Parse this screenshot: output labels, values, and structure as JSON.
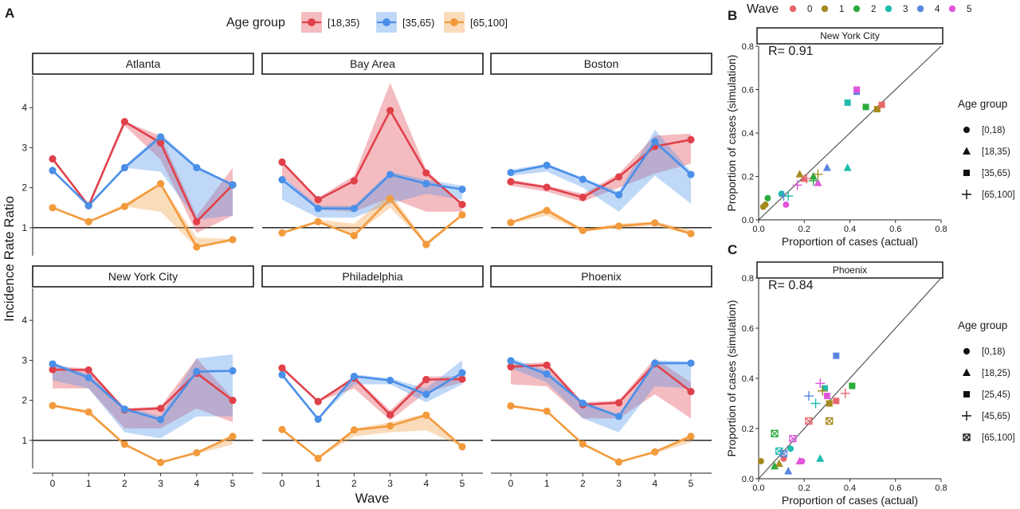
{
  "chart_data": [
    {
      "panel": "A",
      "type": "line",
      "ylabel": "Incidence Rate Ratio",
      "xlabel": "Wave",
      "x": [
        0,
        1,
        2,
        3,
        4,
        5
      ],
      "xticks": [
        "0",
        "1",
        "2",
        "3",
        "4",
        "5"
      ],
      "yticks": [
        "1",
        "2",
        "3",
        "4"
      ],
      "ylim": [
        0.3,
        4.8
      ],
      "hline": 1,
      "legend": {
        "title": "Age group",
        "position": "top",
        "entries": [
          {
            "label": "[18,35)",
            "color": "#e0404a"
          },
          {
            "label": "[35,65)",
            "color": "#4a8fe8"
          },
          {
            "label": "[65,100]",
            "color": "#f29a3c"
          }
        ]
      },
      "facets": [
        {
          "title": "Atlanta",
          "series": [
            {
              "name": "[18,35)",
              "values": [
                2.72,
                1.55,
                3.65,
                3.12,
                1.15,
                2.07
              ],
              "lower": [
                2.72,
                1.55,
                3.55,
                2.7,
                0.87,
                1.3
              ],
              "upper": [
                2.72,
                1.55,
                3.65,
                3.3,
                1.3,
                2.5
              ]
            },
            {
              "name": "[35,65)",
              "values": [
                2.43,
                1.55,
                2.5,
                3.27,
                2.5,
                2.07
              ],
              "lower": [
                2.43,
                1.55,
                2.5,
                2.4,
                1.2,
                1.3
              ],
              "upper": [
                2.43,
                1.55,
                2.55,
                3.35,
                2.55,
                2.1
              ]
            },
            {
              "name": "[65,100]",
              "values": [
                1.5,
                1.15,
                1.53,
                2.1,
                0.52,
                0.7
              ],
              "lower": [
                1.5,
                1.15,
                1.53,
                1.4,
                0.5,
                0.66
              ],
              "upper": [
                1.5,
                1.15,
                1.6,
                2.12,
                0.75,
                0.72
              ]
            }
          ]
        },
        {
          "title": "Bay Area",
          "series": [
            {
              "name": "[18,35)",
              "values": [
                2.64,
                1.7,
                2.17,
                3.93,
                2.37,
                1.58
              ],
              "lower": [
                2.3,
                1.45,
                1.4,
                1.75,
                1.4,
                1.4
              ],
              "upper": [
                2.64,
                1.75,
                2.3,
                4.62,
                2.45,
                1.6
              ]
            },
            {
              "name": "[35,65)",
              "values": [
                2.2,
                1.48,
                1.48,
                2.33,
                2.1,
                1.96
              ],
              "lower": [
                1.7,
                1.25,
                1.25,
                1.6,
                1.85,
                1.7
              ],
              "upper": [
                2.3,
                1.55,
                1.55,
                2.4,
                2.2,
                2.05
              ]
            },
            {
              "name": "[65,100]",
              "values": [
                0.87,
                1.15,
                0.8,
                1.72,
                0.58,
                1.32
              ],
              "lower": [
                0.87,
                1.15,
                0.8,
                1.5,
                0.58,
                1.3
              ],
              "upper": [
                0.87,
                1.2,
                1.1,
                1.85,
                0.65,
                1.35
              ]
            }
          ]
        },
        {
          "title": "Boston",
          "series": [
            {
              "name": "[18,35)",
              "values": [
                2.15,
                2.01,
                1.76,
                2.27,
                3.03,
                3.2
              ],
              "lower": [
                2.05,
                1.9,
                1.65,
                2.0,
                2.35,
                2.6
              ],
              "upper": [
                2.2,
                2.05,
                1.85,
                2.35,
                3.3,
                3.35
              ]
            },
            {
              "name": "[35,65)",
              "values": [
                2.38,
                2.56,
                2.21,
                1.82,
                3.15,
                2.33
              ],
              "lower": [
                2.3,
                2.4,
                2.0,
                1.4,
                2.3,
                1.6
              ],
              "upper": [
                2.45,
                2.6,
                2.25,
                1.9,
                3.45,
                2.4
              ]
            },
            {
              "name": "[65,100]",
              "values": [
                1.13,
                1.43,
                0.93,
                1.04,
                1.12,
                0.85
              ],
              "lower": [
                1.1,
                1.3,
                0.9,
                1.0,
                1.05,
                0.82
              ],
              "upper": [
                1.15,
                1.5,
                0.97,
                1.1,
                1.15,
                0.95
              ]
            }
          ]
        },
        {
          "title": "New York City",
          "series": [
            {
              "name": "[18,35)",
              "values": [
                2.77,
                2.76,
                1.76,
                1.8,
                2.68,
                2.0
              ],
              "lower": [
                2.3,
                2.3,
                1.3,
                1.3,
                1.8,
                1.45
              ],
              "upper": [
                2.85,
                2.8,
                1.8,
                1.85,
                3.05,
                2.05
              ]
            },
            {
              "name": "[35,65)",
              "values": [
                2.91,
                2.57,
                1.78,
                1.52,
                2.72,
                2.74
              ],
              "lower": [
                2.5,
                2.3,
                1.2,
                1.05,
                1.6,
                1.6
              ],
              "upper": [
                2.95,
                2.65,
                1.85,
                1.6,
                3.05,
                3.15
              ]
            },
            {
              "name": "[65,100]",
              "values": [
                1.87,
                1.71,
                0.9,
                0.45,
                0.69,
                1.1
              ],
              "lower": [
                1.85,
                1.65,
                0.88,
                0.43,
                0.66,
                0.9
              ],
              "upper": [
                1.9,
                1.75,
                0.92,
                0.47,
                0.72,
                1.15
              ]
            }
          ]
        },
        {
          "title": "Philadelphia",
          "series": [
            {
              "name": "[18,35)",
              "values": [
                2.81,
                1.97,
                2.56,
                1.64,
                2.52,
                2.53
              ],
              "lower": [
                2.81,
                1.97,
                2.3,
                1.5,
                2.2,
                2.45
              ],
              "upper": [
                2.81,
                1.97,
                2.6,
                1.75,
                2.6,
                2.6
              ]
            },
            {
              "name": "[35,65)",
              "values": [
                2.64,
                1.53,
                2.6,
                2.5,
                2.15,
                2.69
              ],
              "lower": [
                2.64,
                1.53,
                2.4,
                2.4,
                1.95,
                2.4
              ],
              "upper": [
                2.64,
                1.53,
                2.65,
                2.55,
                2.3,
                3.0
              ]
            },
            {
              "name": "[65,100]",
              "values": [
                1.27,
                0.55,
                1.26,
                1.36,
                1.63,
                0.84
              ],
              "lower": [
                1.27,
                0.55,
                1.1,
                1.2,
                1.25,
                0.84
              ],
              "upper": [
                1.27,
                0.55,
                1.3,
                1.45,
                1.67,
                0.84
              ]
            }
          ]
        },
        {
          "title": "Phoenix",
          "series": [
            {
              "name": "[18,35)",
              "values": [
                2.84,
                2.88,
                1.89,
                1.94,
                2.91,
                2.22
              ],
              "lower": [
                2.4,
                2.35,
                1.55,
                1.55,
                2.15,
                1.55
              ],
              "upper": [
                2.9,
                2.95,
                1.95,
                2.0,
                3.05,
                2.45
              ]
            },
            {
              "name": "[35,65)",
              "values": [
                2.99,
                2.66,
                1.93,
                1.6,
                2.93,
                2.93
              ],
              "lower": [
                2.8,
                2.45,
                1.55,
                1.2,
                2.35,
                2.3
              ],
              "upper": [
                3.05,
                2.75,
                1.98,
                1.65,
                3.0,
                2.97
              ]
            },
            {
              "name": "[65,100]",
              "values": [
                1.86,
                1.73,
                0.91,
                0.46,
                0.71,
                1.1
              ],
              "lower": [
                1.83,
                1.7,
                0.88,
                0.44,
                0.68,
                0.95
              ],
              "upper": [
                1.89,
                1.76,
                0.94,
                0.48,
                0.74,
                1.15
              ]
            }
          ]
        }
      ]
    },
    {
      "panel": "B",
      "type": "scatter",
      "strip": "New York City",
      "annotation": "R= 0.91",
      "xlabel": "Proportion of cases (actual)",
      "ylabel": "Proportion of cases (simulation)",
      "xlim": [
        0,
        0.8
      ],
      "ylim": [
        0,
        0.8
      ],
      "ticks": [
        "0.0",
        "0.2",
        "0.4",
        "0.6",
        "0.8"
      ],
      "reference_line": "y = x",
      "wave_legend": {
        "title": "Wave",
        "entries": [
          {
            "label": "0",
            "color": "#e8676b"
          },
          {
            "label": "1",
            "color": "#a68a1e"
          },
          {
            "label": "2",
            "color": "#2aab3c"
          },
          {
            "label": "3",
            "color": "#1dbcad"
          },
          {
            "label": "4",
            "color": "#5a86e0"
          },
          {
            "label": "5",
            "color": "#e056db"
          }
        ]
      },
      "age_legend": {
        "title": "Age group",
        "entries": [
          {
            "label": "[0,18)",
            "shape": "circle"
          },
          {
            "label": "[18,35)",
            "shape": "triangle"
          },
          {
            "label": "[35,65)",
            "shape": "square"
          },
          {
            "label": "[65,100]",
            "shape": "plus"
          }
        ]
      },
      "points": [
        {
          "x": 0.02,
          "y": 0.06,
          "wave": 1,
          "shape": "circle"
        },
        {
          "x": 0.03,
          "y": 0.07,
          "wave": 1,
          "shape": "circle"
        },
        {
          "x": 0.04,
          "y": 0.1,
          "wave": 2,
          "shape": "circle"
        },
        {
          "x": 0.1,
          "y": 0.12,
          "wave": 3,
          "shape": "circle"
        },
        {
          "x": 0.12,
          "y": 0.07,
          "wave": 5,
          "shape": "circle"
        },
        {
          "x": 0.18,
          "y": 0.21,
          "wave": 1,
          "shape": "triangle"
        },
        {
          "x": 0.2,
          "y": 0.19,
          "wave": 0,
          "shape": "triangle"
        },
        {
          "x": 0.24,
          "y": 0.2,
          "wave": 2,
          "shape": "triangle"
        },
        {
          "x": 0.26,
          "y": 0.17,
          "wave": 5,
          "shape": "triangle"
        },
        {
          "x": 0.3,
          "y": 0.24,
          "wave": 4,
          "shape": "triangle"
        },
        {
          "x": 0.39,
          "y": 0.24,
          "wave": 3,
          "shape": "triangle"
        },
        {
          "x": 0.39,
          "y": 0.54,
          "wave": 3,
          "shape": "square"
        },
        {
          "x": 0.43,
          "y": 0.59,
          "wave": 4,
          "shape": "square"
        },
        {
          "x": 0.43,
          "y": 0.6,
          "wave": 5,
          "shape": "square"
        },
        {
          "x": 0.47,
          "y": 0.52,
          "wave": 2,
          "shape": "square"
        },
        {
          "x": 0.52,
          "y": 0.51,
          "wave": 1,
          "shape": "square"
        },
        {
          "x": 0.54,
          "y": 0.53,
          "wave": 0,
          "shape": "square"
        },
        {
          "x": 0.11,
          "y": 0.11,
          "wave": 4,
          "shape": "plus"
        },
        {
          "x": 0.13,
          "y": 0.11,
          "wave": 3,
          "shape": "plus"
        },
        {
          "x": 0.17,
          "y": 0.16,
          "wave": 5,
          "shape": "plus"
        },
        {
          "x": 0.21,
          "y": 0.19,
          "wave": 0,
          "shape": "plus"
        },
        {
          "x": 0.24,
          "y": 0.18,
          "wave": 2,
          "shape": "plus"
        },
        {
          "x": 0.26,
          "y": 0.21,
          "wave": 1,
          "shape": "plus"
        }
      ]
    },
    {
      "panel": "C",
      "type": "scatter",
      "strip": "Phoenix",
      "annotation": "R= 0.84",
      "xlabel": "Proportion of cases (actual)",
      "ylabel": "Proportion of cases (simulation)",
      "xlim": [
        0,
        0.8
      ],
      "ylim": [
        0,
        0.8
      ],
      "ticks": [
        "0.0",
        "0.2",
        "0.4",
        "0.6",
        "0.8"
      ],
      "reference_line": "y = x",
      "age_legend": {
        "title": "Age group",
        "entries": [
          {
            "label": "[0,18)",
            "shape": "circle"
          },
          {
            "label": "[18,25)",
            "shape": "triangle"
          },
          {
            "label": "[25,45)",
            "shape": "square"
          },
          {
            "label": "[45,65)",
            "shape": "plus"
          },
          {
            "label": "[65,100]",
            "shape": "boxx"
          }
        ]
      },
      "points": [
        {
          "x": 0.01,
          "y": 0.07,
          "wave": 1,
          "shape": "circle"
        },
        {
          "x": 0.11,
          "y": 0.08,
          "wave": 0,
          "shape": "circle"
        },
        {
          "x": 0.14,
          "y": 0.12,
          "wave": 3,
          "shape": "circle"
        },
        {
          "x": 0.19,
          "y": 0.07,
          "wave": 5,
          "shape": "circle"
        },
        {
          "x": 0.07,
          "y": 0.05,
          "wave": 2,
          "shape": "triangle"
        },
        {
          "x": 0.09,
          "y": 0.06,
          "wave": 1,
          "shape": "triangle"
        },
        {
          "x": 0.13,
          "y": 0.03,
          "wave": 4,
          "shape": "triangle"
        },
        {
          "x": 0.18,
          "y": 0.07,
          "wave": 5,
          "shape": "triangle"
        },
        {
          "x": 0.27,
          "y": 0.08,
          "wave": 3,
          "shape": "triangle"
        },
        {
          "x": 0.31,
          "y": 0.3,
          "wave": 1,
          "shape": "square"
        },
        {
          "x": 0.34,
          "y": 0.31,
          "wave": 0,
          "shape": "square"
        },
        {
          "x": 0.3,
          "y": 0.33,
          "wave": 5,
          "shape": "square"
        },
        {
          "x": 0.29,
          "y": 0.36,
          "wave": 3,
          "shape": "square"
        },
        {
          "x": 0.41,
          "y": 0.37,
          "wave": 2,
          "shape": "square"
        },
        {
          "x": 0.34,
          "y": 0.49,
          "wave": 4,
          "shape": "square"
        },
        {
          "x": 0.22,
          "y": 0.33,
          "wave": 4,
          "shape": "plus"
        },
        {
          "x": 0.25,
          "y": 0.3,
          "wave": 3,
          "shape": "plus"
        },
        {
          "x": 0.27,
          "y": 0.38,
          "wave": 5,
          "shape": "plus"
        },
        {
          "x": 0.28,
          "y": 0.35,
          "wave": 1,
          "shape": "plus"
        },
        {
          "x": 0.38,
          "y": 0.34,
          "wave": 0,
          "shape": "plus"
        },
        {
          "x": 0.07,
          "y": 0.18,
          "wave": 2,
          "shape": "boxx"
        },
        {
          "x": 0.09,
          "y": 0.11,
          "wave": 3,
          "shape": "boxx"
        },
        {
          "x": 0.11,
          "y": 0.1,
          "wave": 4,
          "shape": "boxx"
        },
        {
          "x": 0.15,
          "y": 0.16,
          "wave": 5,
          "shape": "boxx"
        },
        {
          "x": 0.22,
          "y": 0.23,
          "wave": 0,
          "shape": "boxx"
        },
        {
          "x": 0.31,
          "y": 0.23,
          "wave": 1,
          "shape": "boxx"
        }
      ]
    }
  ]
}
